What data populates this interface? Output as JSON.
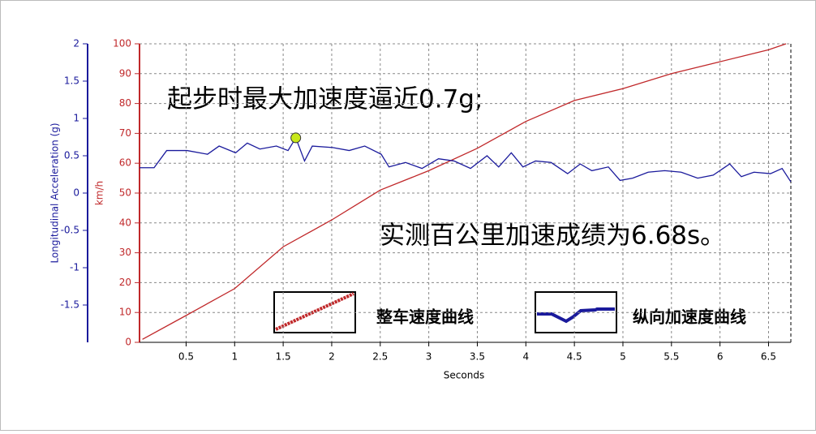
{
  "chart_data": {
    "type": "line",
    "xlabel": "Seconds",
    "ylabel": "km/h",
    "y2label": "Longitudinal Acceleration (g)",
    "xlim": [
      0.02,
      6.73
    ],
    "xticks": [
      0.5,
      1,
      1.5,
      2,
      2.5,
      3,
      3.5,
      4,
      4.5,
      5,
      5.5,
      6,
      6.5
    ],
    "ylim": [
      0,
      100
    ],
    "yticks": [
      0,
      10,
      20,
      30,
      40,
      50,
      60,
      70,
      80,
      90,
      100
    ],
    "y2lim": [
      -2,
      2
    ],
    "y2ticks": [
      -1.5,
      -1,
      -0.5,
      0,
      0.5,
      1,
      1.5,
      2
    ],
    "grid": true,
    "series": [
      {
        "name": "整车速度曲线",
        "color": "#c0282a",
        "x": [
          0.05,
          0.5,
          1,
          1.5,
          2,
          2.5,
          3,
          3.5,
          4,
          4.5,
          5,
          5.5,
          6,
          6.5,
          6.68
        ],
        "values": [
          1,
          9,
          18,
          32,
          41,
          51,
          57.5,
          65,
          74,
          81,
          85,
          90,
          94,
          98,
          100
        ]
      },
      {
        "name": "纵向加速度曲线",
        "color": "#1a1a9c",
        "axis": "y2",
        "x": [
          0.02,
          0.17,
          0.3,
          0.51,
          0.72,
          0.84,
          1.01,
          1.13,
          1.26,
          1.43,
          1.55,
          1.63,
          1.72,
          1.8,
          2.01,
          2.18,
          2.34,
          2.51,
          2.59,
          2.76,
          2.93,
          3.1,
          3.26,
          3.43,
          3.6,
          3.72,
          3.85,
          3.97,
          4.1,
          4.26,
          4.43,
          4.56,
          4.68,
          4.85,
          4.97,
          5.1,
          5.26,
          5.43,
          5.6,
          5.77,
          5.93,
          6.1,
          6.22,
          6.35,
          6.52,
          6.64,
          6.73
        ],
        "values": [
          0.34,
          0.34,
          0.57,
          0.57,
          0.52,
          0.63,
          0.54,
          0.67,
          0.59,
          0.63,
          0.57,
          0.74,
          0.43,
          0.63,
          0.61,
          0.57,
          0.63,
          0.52,
          0.35,
          0.41,
          0.33,
          0.46,
          0.43,
          0.33,
          0.5,
          0.35,
          0.54,
          0.35,
          0.43,
          0.41,
          0.26,
          0.39,
          0.3,
          0.35,
          0.17,
          0.2,
          0.28,
          0.3,
          0.28,
          0.2,
          0.24,
          0.39,
          0.22,
          0.28,
          0.26,
          0.33,
          0.15
        ]
      }
    ],
    "highlight": {
      "x": 1.63,
      "value": 0.74,
      "color": "#c8e81a"
    },
    "annotations": [
      "起步时最大加速度逼近0.7g;",
      "实测百公里加速成绩为6.68s。"
    ]
  }
}
